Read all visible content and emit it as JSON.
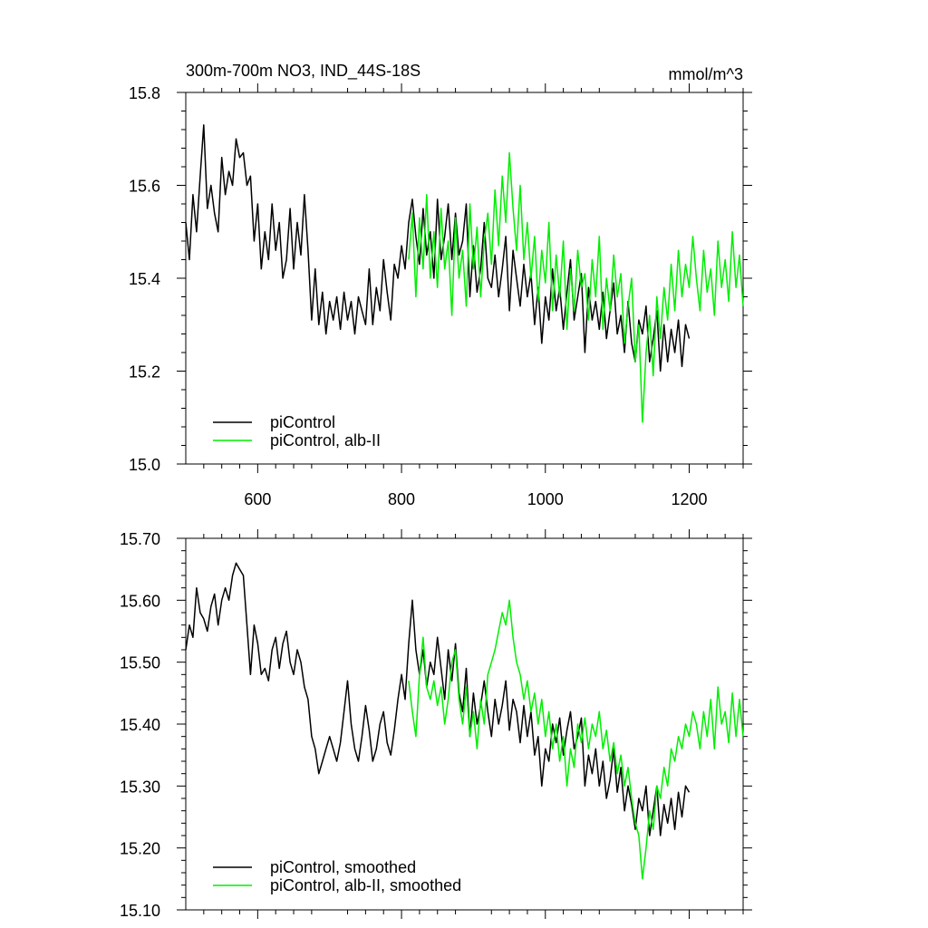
{
  "title_left": "300m-700m NO3, IND_44S-18S",
  "title_right": "mmol/m^3",
  "colors": {
    "piControl": "#000000",
    "albII": "#00ee00",
    "axis": "#000000"
  },
  "chart_data": [
    {
      "type": "line",
      "title": "300m-700m NO3, IND_44S-18S",
      "units": "mmol/m^3",
      "xlim": [
        500,
        1275
      ],
      "ylim": [
        15.0,
        15.8
      ],
      "x_ticks": [
        600,
        800,
        1000,
        1200
      ],
      "x_tick_labels": [
        "600",
        "800",
        "1000",
        "1200"
      ],
      "y_ticks": [
        15.0,
        15.2,
        15.4,
        15.6,
        15.8
      ],
      "y_tick_labels": [
        "15.0",
        "15.2",
        "15.4",
        "15.6",
        "15.8"
      ],
      "grid": false,
      "legend_position": "bottom-left",
      "series": [
        {
          "name": "piControl",
          "color": "#000000",
          "x": [
            500,
            505,
            510,
            515,
            520,
            525,
            530,
            535,
            540,
            545,
            550,
            555,
            560,
            565,
            570,
            575,
            580,
            585,
            590,
            595,
            600,
            605,
            610,
            615,
            620,
            625,
            630,
            635,
            640,
            645,
            650,
            655,
            660,
            665,
            670,
            675,
            680,
            685,
            690,
            695,
            700,
            705,
            710,
            715,
            720,
            725,
            730,
            735,
            740,
            745,
            750,
            755,
            760,
            765,
            770,
            775,
            780,
            785,
            790,
            795,
            800,
            805,
            810,
            815,
            820,
            825,
            830,
            835,
            840,
            845,
            850,
            855,
            860,
            865,
            870,
            875,
            880,
            885,
            890,
            895,
            900,
            905,
            910,
            915,
            920,
            925,
            930,
            935,
            940,
            945,
            950,
            955,
            960,
            965,
            970,
            975,
            980,
            985,
            990,
            995,
            1000,
            1005,
            1010,
            1015,
            1020,
            1025,
            1030,
            1035,
            1040,
            1045,
            1050,
            1055,
            1060,
            1065,
            1070,
            1075,
            1080,
            1085,
            1090,
            1095,
            1100,
            1105,
            1110,
            1115,
            1120,
            1125,
            1130,
            1135,
            1140,
            1145,
            1150,
            1155,
            1160,
            1165,
            1170,
            1175,
            1180,
            1185,
            1190,
            1195,
            1200
          ],
          "y": [
            15.52,
            15.44,
            15.58,
            15.5,
            15.62,
            15.73,
            15.55,
            15.6,
            15.54,
            15.5,
            15.66,
            15.58,
            15.63,
            15.6,
            15.7,
            15.66,
            15.67,
            15.6,
            15.62,
            15.48,
            15.56,
            15.42,
            15.5,
            15.44,
            15.56,
            15.46,
            15.52,
            15.4,
            15.44,
            15.55,
            15.42,
            15.52,
            15.45,
            15.58,
            15.46,
            15.31,
            15.42,
            15.3,
            15.37,
            15.28,
            15.35,
            15.31,
            15.36,
            15.29,
            15.37,
            15.31,
            15.35,
            15.28,
            15.36,
            15.33,
            15.3,
            15.42,
            15.3,
            15.38,
            15.33,
            15.44,
            15.37,
            15.31,
            15.43,
            15.4,
            15.47,
            15.42,
            15.52,
            15.57,
            15.49,
            15.43,
            15.55,
            15.45,
            15.5,
            15.4,
            15.57,
            15.44,
            15.49,
            15.56,
            15.44,
            15.54,
            15.45,
            15.48,
            15.56,
            15.36,
            15.47,
            15.37,
            15.42,
            15.52,
            15.4,
            15.38,
            15.45,
            15.36,
            15.42,
            15.49,
            15.33,
            15.46,
            15.4,
            15.34,
            15.43,
            15.36,
            15.41,
            15.3,
            15.38,
            15.26,
            15.36,
            15.31,
            15.42,
            15.33,
            15.38,
            15.29,
            15.37,
            15.44,
            15.31,
            15.36,
            15.41,
            15.24,
            15.38,
            15.31,
            15.35,
            15.29,
            15.37,
            15.27,
            15.33,
            15.39,
            15.28,
            15.32,
            15.24,
            15.35,
            15.26,
            15.22,
            15.31,
            15.28,
            15.34,
            15.22,
            15.27,
            15.33,
            15.2,
            15.3,
            15.22,
            15.29,
            15.24,
            15.31,
            15.21,
            15.3,
            15.27
          ],
          "values_note": ""
        },
        {
          "name": "piControl, alb-II",
          "color": "#00ee00",
          "x": [
            810,
            815,
            820,
            825,
            830,
            835,
            840,
            845,
            850,
            855,
            860,
            865,
            870,
            875,
            880,
            885,
            890,
            895,
            900,
            905,
            910,
            915,
            920,
            925,
            930,
            935,
            940,
            945,
            950,
            955,
            960,
            965,
            970,
            975,
            980,
            985,
            990,
            995,
            1000,
            1005,
            1010,
            1015,
            1020,
            1025,
            1030,
            1035,
            1040,
            1045,
            1050,
            1055,
            1060,
            1065,
            1070,
            1075,
            1080,
            1085,
            1090,
            1095,
            1100,
            1105,
            1110,
            1115,
            1120,
            1125,
            1130,
            1135,
            1140,
            1145,
            1150,
            1155,
            1160,
            1165,
            1170,
            1175,
            1180,
            1185,
            1190,
            1195,
            1200,
            1205,
            1210,
            1215,
            1220,
            1225,
            1230,
            1235,
            1240,
            1245,
            1250,
            1255,
            1260,
            1265,
            1270,
            1275
          ],
          "y": [
            15.44,
            15.54,
            15.36,
            15.53,
            15.42,
            15.58,
            15.4,
            15.5,
            15.38,
            15.55,
            15.42,
            15.48,
            15.32,
            15.53,
            15.4,
            15.46,
            15.34,
            15.56,
            15.42,
            15.51,
            15.36,
            15.48,
            15.54,
            15.43,
            15.59,
            15.47,
            15.62,
            15.52,
            15.67,
            15.55,
            15.46,
            15.6,
            15.44,
            15.52,
            15.4,
            15.49,
            15.35,
            15.46,
            15.39,
            15.52,
            15.33,
            15.45,
            15.36,
            15.48,
            15.29,
            15.42,
            15.33,
            15.46,
            15.38,
            15.41,
            15.31,
            15.44,
            15.36,
            15.49,
            15.29,
            15.4,
            15.33,
            15.45,
            15.36,
            15.41,
            15.26,
            15.34,
            15.4,
            15.22,
            15.3,
            15.09,
            15.24,
            15.32,
            15.19,
            15.36,
            15.27,
            15.38,
            15.31,
            15.43,
            15.33,
            15.46,
            15.36,
            15.43,
            15.38,
            15.49,
            15.4,
            15.33,
            15.46,
            15.37,
            15.42,
            15.32,
            15.48,
            15.38,
            15.44,
            15.35,
            15.5,
            15.38,
            15.45,
            15.34
          ]
        }
      ],
      "legend": [
        "piControl",
        "piControl, alb-II"
      ]
    },
    {
      "type": "line",
      "xlim": [
        500,
        1275
      ],
      "ylim": [
        15.1,
        15.7
      ],
      "x_ticks": [
        600,
        800,
        1000,
        1200
      ],
      "y_ticks": [
        15.1,
        15.2,
        15.3,
        15.4,
        15.5,
        15.6,
        15.7
      ],
      "y_tick_labels": [
        "15.10",
        "15.20",
        "15.30",
        "15.40",
        "15.50",
        "15.60",
        "15.70"
      ],
      "grid": false,
      "legend_position": "bottom-left",
      "series": [
        {
          "name": "piControl, smoothed",
          "color": "#000000",
          "x": [
            500,
            505,
            510,
            515,
            520,
            525,
            530,
            535,
            540,
            545,
            550,
            555,
            560,
            565,
            570,
            575,
            580,
            585,
            590,
            595,
            600,
            605,
            610,
            615,
            620,
            625,
            630,
            635,
            640,
            645,
            650,
            655,
            660,
            665,
            670,
            675,
            680,
            685,
            690,
            695,
            700,
            705,
            710,
            715,
            720,
            725,
            730,
            735,
            740,
            745,
            750,
            755,
            760,
            765,
            770,
            775,
            780,
            785,
            790,
            795,
            800,
            805,
            810,
            815,
            820,
            825,
            830,
            835,
            840,
            845,
            850,
            855,
            860,
            865,
            870,
            875,
            880,
            885,
            890,
            895,
            900,
            905,
            910,
            915,
            920,
            925,
            930,
            935,
            940,
            945,
            950,
            955,
            960,
            965,
            970,
            975,
            980,
            985,
            990,
            995,
            1000,
            1005,
            1010,
            1015,
            1020,
            1025,
            1030,
            1035,
            1040,
            1045,
            1050,
            1055,
            1060,
            1065,
            1070,
            1075,
            1080,
            1085,
            1090,
            1095,
            1100,
            1105,
            1110,
            1115,
            1120,
            1125,
            1130,
            1135,
            1140,
            1145,
            1150,
            1155,
            1160,
            1165,
            1170,
            1175,
            1180,
            1185,
            1190,
            1195,
            1200
          ],
          "y": [
            15.52,
            15.56,
            15.54,
            15.62,
            15.58,
            15.57,
            15.55,
            15.59,
            15.61,
            15.56,
            15.6,
            15.62,
            15.6,
            15.64,
            15.66,
            15.65,
            15.64,
            15.56,
            15.48,
            15.56,
            15.53,
            15.48,
            15.49,
            15.47,
            15.52,
            15.54,
            15.49,
            15.53,
            15.55,
            15.5,
            15.48,
            15.52,
            15.5,
            15.46,
            15.44,
            15.38,
            15.36,
            15.32,
            15.34,
            15.36,
            15.38,
            15.36,
            15.34,
            15.37,
            15.42,
            15.47,
            15.4,
            15.36,
            15.34,
            15.38,
            15.43,
            15.39,
            15.34,
            15.36,
            15.4,
            15.42,
            15.37,
            15.35,
            15.39,
            15.44,
            15.48,
            15.44,
            15.53,
            15.6,
            15.52,
            15.48,
            15.52,
            15.46,
            15.5,
            15.48,
            15.54,
            15.49,
            15.44,
            15.52,
            15.47,
            15.53,
            15.45,
            15.42,
            15.49,
            15.38,
            15.45,
            15.4,
            15.43,
            15.47,
            15.42,
            15.38,
            15.44,
            15.4,
            15.43,
            15.47,
            15.39,
            15.44,
            15.42,
            15.37,
            15.43,
            15.38,
            15.42,
            15.35,
            15.38,
            15.3,
            15.36,
            15.34,
            15.4,
            15.37,
            15.41,
            15.35,
            15.39,
            15.42,
            15.36,
            15.38,
            15.41,
            15.3,
            15.35,
            15.32,
            15.36,
            15.3,
            15.34,
            15.28,
            15.31,
            15.36,
            15.29,
            15.33,
            15.26,
            15.3,
            15.27,
            15.23,
            15.28,
            15.26,
            15.3,
            15.22,
            15.26,
            15.3,
            15.22,
            15.27,
            15.24,
            15.28,
            15.23,
            15.29,
            15.25,
            15.3,
            15.29
          ]
        },
        {
          "name": "piControl, alb-II, smoothed",
          "color": "#00ee00",
          "x": [
            810,
            815,
            820,
            825,
            830,
            835,
            840,
            845,
            850,
            855,
            860,
            865,
            870,
            875,
            880,
            885,
            890,
            895,
            900,
            905,
            910,
            915,
            920,
            925,
            930,
            935,
            940,
            945,
            950,
            955,
            960,
            965,
            970,
            975,
            980,
            985,
            990,
            995,
            1000,
            1005,
            1010,
            1015,
            1020,
            1025,
            1030,
            1035,
            1040,
            1045,
            1050,
            1055,
            1060,
            1065,
            1070,
            1075,
            1080,
            1085,
            1090,
            1095,
            1100,
            1105,
            1110,
            1115,
            1120,
            1125,
            1130,
            1135,
            1140,
            1145,
            1150,
            1155,
            1160,
            1165,
            1170,
            1175,
            1180,
            1185,
            1190,
            1195,
            1200,
            1205,
            1210,
            1215,
            1220,
            1225,
            1230,
            1235,
            1240,
            1245,
            1250,
            1255,
            1260,
            1265,
            1270,
            1275
          ],
          "y": [
            15.47,
            15.42,
            15.38,
            15.48,
            15.54,
            15.46,
            15.44,
            15.47,
            15.43,
            15.46,
            15.4,
            15.44,
            15.5,
            15.52,
            15.44,
            15.4,
            15.46,
            15.38,
            15.42,
            15.36,
            15.44,
            15.4,
            15.48,
            15.5,
            15.52,
            15.55,
            15.58,
            15.56,
            15.6,
            15.54,
            15.5,
            15.48,
            15.44,
            15.47,
            15.42,
            15.45,
            15.4,
            15.44,
            15.38,
            15.42,
            15.36,
            15.4,
            15.34,
            15.38,
            15.3,
            15.36,
            15.33,
            15.4,
            15.37,
            15.41,
            15.36,
            15.4,
            15.38,
            15.42,
            15.36,
            15.39,
            15.34,
            15.37,
            15.32,
            15.35,
            15.3,
            15.33,
            15.28,
            15.24,
            15.22,
            15.15,
            15.2,
            15.26,
            15.23,
            15.3,
            15.28,
            15.33,
            15.3,
            15.36,
            15.34,
            15.38,
            15.36,
            15.4,
            15.38,
            15.42,
            15.4,
            15.36,
            15.42,
            15.38,
            15.44,
            15.36,
            15.46,
            15.4,
            15.42,
            15.37,
            15.45,
            15.38,
            15.44,
            15.38
          ]
        }
      ],
      "legend": [
        "piControl, smoothed",
        "piControl, alb-II, smoothed"
      ]
    }
  ]
}
